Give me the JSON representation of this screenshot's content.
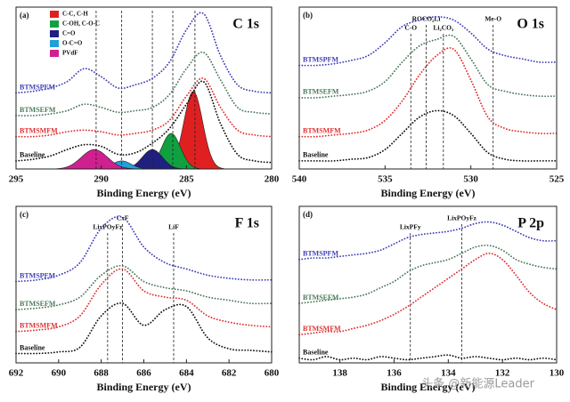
{
  "chart_data": [
    {
      "type": "line",
      "panel_label": "(a)",
      "title": "C 1s",
      "x_label": "Binding Energy (eV)",
      "xlim": [
        295,
        280
      ],
      "xticks": [
        295,
        290,
        285,
        280
      ],
      "ylim": [
        0,
        100
      ],
      "x": [
        295,
        294,
        293,
        292,
        291,
        290,
        289,
        288,
        287,
        286,
        285,
        284,
        283,
        282,
        281,
        280
      ],
      "series": [
        {
          "name": "BTMSPFM",
          "color": "#4040b8",
          "values": [
            47,
            48,
            50,
            54,
            62,
            57,
            50,
            52,
            56,
            66,
            86,
            96,
            70,
            52,
            48,
            47
          ]
        },
        {
          "name": "BTMSEFM",
          "color": "#4a7a5a",
          "values": [
            33,
            33,
            34,
            36,
            40,
            38,
            35,
            36,
            38,
            46,
            62,
            72,
            55,
            38,
            35,
            34
          ]
        },
        {
          "name": "BTMSMFM",
          "color": "#e03030",
          "values": [
            20,
            20,
            21,
            23,
            24,
            23,
            21,
            22,
            24,
            30,
            45,
            56,
            38,
            24,
            21,
            20
          ]
        },
        {
          "name": "Baseline",
          "color": "#111111",
          "values": [
            5,
            6,
            8,
            12,
            15,
            14,
            9,
            10,
            16,
            25,
            40,
            54,
            28,
            9,
            5,
            4
          ]
        }
      ],
      "components": [
        {
          "name": "C-C, C-H",
          "color": "#e02020",
          "center": 284.6,
          "height": 48,
          "fwhm": 1.3
        },
        {
          "name": "C-OH, C-O-C",
          "color": "#10a040",
          "center": 285.9,
          "height": 22,
          "fwhm": 1.3
        },
        {
          "name": "C=O",
          "color": "#202080",
          "center": 287.0,
          "height": 12,
          "fwhm": 1.4
        },
        {
          "name": "O-C=O",
          "color": "#20a0d8",
          "center": 288.8,
          "height": 5,
          "fwhm": 1.3
        },
        {
          "name": "PVdF",
          "color": "#d02090",
          "center": 290.4,
          "height": 12,
          "fwhm": 1.8
        }
      ],
      "references": [
        {
          "x": 290.3
        },
        {
          "x": 288.8
        },
        {
          "x": 287.0
        },
        {
          "x": 285.8
        },
        {
          "x": 284.5
        }
      ]
    },
    {
      "type": "line",
      "panel_label": "(b)",
      "title": "O 1s",
      "x_label": "Binding Energy (eV)",
      "xlim": [
        540,
        525
      ],
      "xticks": [
        540,
        535,
        530,
        525
      ],
      "ylim": [
        0,
        100
      ],
      "x": [
        540,
        539,
        538,
        537,
        536,
        535,
        534,
        533,
        532,
        531,
        530,
        529,
        528,
        527,
        526,
        525
      ],
      "series": [
        {
          "name": "BTMSPFM",
          "color": "#4040b8",
          "values": [
            64,
            64,
            65,
            67,
            70,
            78,
            88,
            92,
            94,
            92,
            84,
            74,
            70,
            68,
            66,
            66
          ]
        },
        {
          "name": "BTMSEFM",
          "color": "#4a7a5a",
          "values": [
            44,
            44,
            45,
            46,
            48,
            54,
            66,
            76,
            80,
            82,
            68,
            52,
            48,
            46,
            45,
            45
          ]
        },
        {
          "name": "BTMSMFM",
          "color": "#e03030",
          "values": [
            20,
            20,
            21,
            22,
            24,
            30,
            42,
            58,
            70,
            74,
            55,
            32,
            25,
            23,
            22,
            22
          ]
        },
        {
          "name": "Baseline",
          "color": "#111111",
          "values": [
            5,
            5,
            5,
            6,
            7,
            12,
            22,
            32,
            36,
            33,
            22,
            10,
            6,
            5,
            5,
            5
          ]
        }
      ],
      "references": [
        {
          "x": 533.5,
          "label": "C-O"
        },
        {
          "x": 532.6,
          "label": "ROCO₂Li"
        },
        {
          "x": 531.6,
          "label": "Li₂CO₃"
        },
        {
          "x": 528.7,
          "label": "Me-O"
        }
      ]
    },
    {
      "type": "line",
      "panel_label": "(c)",
      "title": "F 1s",
      "x_label": "Binding Energy (eV)",
      "xlim": [
        692,
        680
      ],
      "xticks": [
        692,
        690,
        688,
        686,
        684,
        682,
        680
      ],
      "ylim": [
        0,
        100
      ],
      "x": [
        692,
        691,
        690,
        689,
        688,
        687,
        686,
        685,
        684,
        683,
        682,
        681,
        680
      ],
      "series": [
        {
          "name": "BTMSPFM",
          "color": "#4040b8",
          "values": [
            52,
            53,
            56,
            64,
            86,
            93,
            74,
            64,
            60,
            56,
            54,
            53,
            53
          ]
        },
        {
          "name": "BTMSEFM",
          "color": "#4a7a5a",
          "values": [
            34,
            35,
            37,
            42,
            56,
            62,
            52,
            48,
            46,
            42,
            40,
            38,
            38
          ]
        },
        {
          "name": "BTMSMFM",
          "color": "#e03030",
          "values": [
            20,
            21,
            23,
            30,
            50,
            60,
            46,
            42,
            40,
            30,
            26,
            24,
            23
          ]
        },
        {
          "name": "Baseline",
          "color": "#111111",
          "values": [
            6,
            6,
            7,
            10,
            30,
            38,
            24,
            34,
            36,
            16,
            9,
            8,
            7
          ]
        }
      ],
      "references": [
        {
          "x": 687.7,
          "label": "LixPOyFz"
        },
        {
          "x": 687.0,
          "label": "CxF"
        },
        {
          "x": 684.6,
          "label": "LiF"
        }
      ]
    },
    {
      "type": "line",
      "panel_label": "(d)",
      "title": "P 2p",
      "x_label": "Binding Energy (eV)",
      "xlim": [
        139.5,
        130
      ],
      "xticks": [
        138,
        136,
        134,
        132,
        130
      ],
      "ylim": [
        0,
        100
      ],
      "x": [
        139.5,
        139,
        138.5,
        138,
        137.5,
        137,
        136.5,
        136,
        135.5,
        135,
        134.5,
        134,
        133.5,
        133,
        132.5,
        132,
        131.5,
        131,
        130.5,
        130
      ],
      "series": [
        {
          "name": "BTMSPFM",
          "color": "#4040b8",
          "values": [
            66,
            67,
            67,
            68,
            69,
            70,
            72,
            76,
            80,
            82,
            83,
            84,
            86,
            89,
            90,
            88,
            84,
            80,
            78,
            78
          ]
        },
        {
          "name": "BTMSEFM",
          "color": "#4a7a5a",
          "values": [
            38,
            39,
            40,
            41,
            42,
            44,
            48,
            52,
            58,
            62,
            64,
            66,
            70,
            74,
            75,
            72,
            66,
            63,
            61,
            60
          ]
        },
        {
          "name": "BTMSMFM",
          "color": "#e03030",
          "values": [
            18,
            19,
            20,
            20,
            22,
            24,
            27,
            31,
            36,
            42,
            48,
            54,
            60,
            66,
            70,
            66,
            56,
            45,
            38,
            34
          ]
        },
        {
          "name": "Baseline",
          "color": "#111111",
          "values": [
            3,
            2,
            4,
            2,
            3,
            2,
            4,
            3,
            2,
            3,
            4,
            5,
            3,
            4,
            3,
            2,
            3,
            2,
            3,
            2
          ]
        }
      ],
      "references": [
        {
          "x": 135.4,
          "label": "LixPFy"
        },
        {
          "x": 133.5,
          "label": "LixPOyFz"
        }
      ]
    }
  ],
  "watermark": "头条 @新能源Leader"
}
